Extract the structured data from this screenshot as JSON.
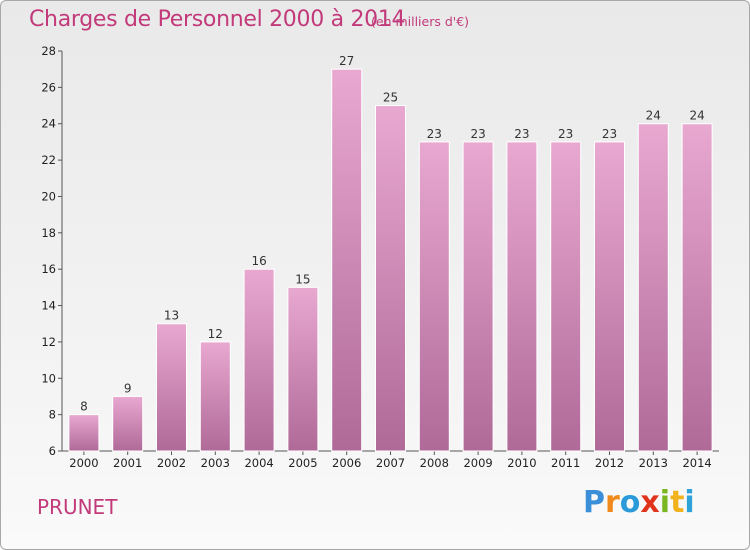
{
  "header": {
    "title": "Charges de Personnel 2000 à 2014",
    "unit": "(en milliers d'€)"
  },
  "footer": {
    "commune": "PRUNET",
    "logo_letters": [
      "P",
      "r",
      "o",
      "x",
      "i",
      "t",
      "i"
    ]
  },
  "colors": {
    "title": "#c23a7a",
    "bar_top": "#e8a8d0",
    "bar_bottom": "#b06a98"
  },
  "chart_data": {
    "type": "bar",
    "title": "Charges de Personnel 2000 à 2014",
    "subtitle": "(en milliers d'€)",
    "categories": [
      "2000",
      "2001",
      "2002",
      "2003",
      "2004",
      "2005",
      "2006",
      "2007",
      "2008",
      "2009",
      "2010",
      "2011",
      "2012",
      "2013",
      "2014"
    ],
    "values": [
      8,
      9,
      13,
      12,
      16,
      15,
      27,
      25,
      23,
      23,
      23,
      23,
      23,
      24,
      24
    ],
    "ylim": [
      6,
      28
    ],
    "yticks": [
      6,
      8,
      10,
      12,
      14,
      16,
      18,
      20,
      22,
      24,
      26,
      28
    ],
    "grid": false,
    "data_labels": true
  }
}
